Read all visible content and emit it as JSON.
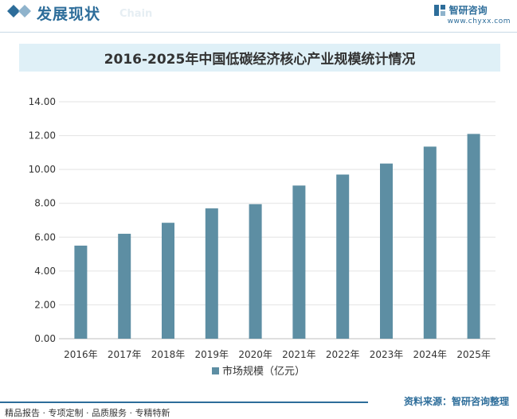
{
  "header": {
    "title": "发展现状",
    "watermark_text": "Chain",
    "brand_name": "智研咨询",
    "brand_url": "www.chyxx.com"
  },
  "chart_data": {
    "type": "bar",
    "title": "2016-2025年中国低碳经济核心产业规模统计情况",
    "categories": [
      "2016年",
      "2017年",
      "2018年",
      "2019年",
      "2020年",
      "2021年",
      "2022年",
      "2023年",
      "2024年",
      "2025年"
    ],
    "series": [
      {
        "name": "市场规模（亿元）",
        "values": [
          5.5,
          6.2,
          6.85,
          7.7,
          7.95,
          9.05,
          9.7,
          10.35,
          11.35,
          12.1
        ]
      }
    ],
    "yticks": [
      "0.00",
      "2.00",
      "4.00",
      "6.00",
      "8.00",
      "10.00",
      "12.00",
      "14.00"
    ],
    "ylim": [
      0,
      14
    ],
    "grid": true,
    "legend_position": "bottom",
    "bar_color": "#5d8ea3"
  },
  "footer": {
    "tagline": "精品报告 · 专项定制 · 品质服务 · 专精特新",
    "source": "资料来源：智研咨询整理"
  }
}
